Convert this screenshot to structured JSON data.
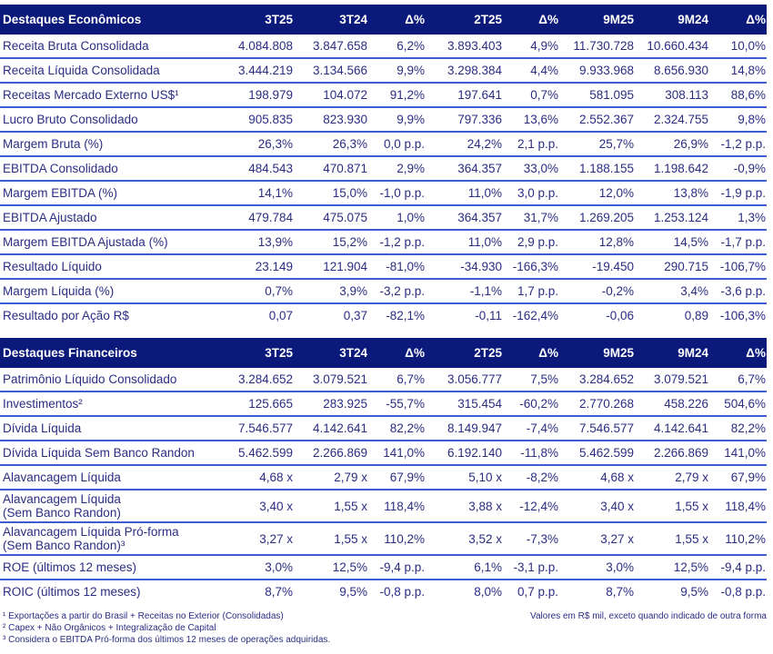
{
  "economic": {
    "header": [
      "Destaques Econômicos",
      "3T25",
      "3T24",
      "Δ%",
      "2T25",
      "Δ%",
      "9M25",
      "9M24",
      "Δ%"
    ],
    "rows": [
      [
        "Receita Bruta Consolidada",
        "4.084.808",
        "3.847.658",
        "6,2%",
        "3.893.403",
        "4,9%",
        "11.730.728",
        "10.660.434",
        "10,0%"
      ],
      [
        "Receita Líquida Consolidada",
        "3.444.219",
        "3.134.566",
        "9,9%",
        "3.298.384",
        "4,4%",
        "9.933.968",
        "8.656.930",
        "14,8%"
      ],
      [
        "Receitas Mercado Externo US$¹",
        "198.979",
        "104.072",
        "91,2%",
        "197.641",
        "0,7%",
        "581.095",
        "308.113",
        "88,6%"
      ],
      [
        "Lucro Bruto Consolidado",
        "905.835",
        "823.930",
        "9,9%",
        "797.336",
        "13,6%",
        "2.552.367",
        "2.324.755",
        "9,8%"
      ],
      [
        "Margem Bruta (%)",
        "26,3%",
        "26,3%",
        "0,0 p.p.",
        "24,2%",
        "2,1 p.p.",
        "25,7%",
        "26,9%",
        "-1,2 p.p."
      ],
      [
        "EBITDA Consolidado",
        "484.543",
        "470.871",
        "2,9%",
        "364.357",
        "33,0%",
        "1.188.155",
        "1.198.642",
        "-0,9%"
      ],
      [
        "Margem EBITDA (%)",
        "14,1%",
        "15,0%",
        "-1,0 p.p.",
        "11,0%",
        "3,0 p.p.",
        "12,0%",
        "13,8%",
        "-1,9 p.p."
      ],
      [
        "EBITDA Ajustado",
        "479.784",
        "475.075",
        "1,0%",
        "364.357",
        "31,7%",
        "1.269.205",
        "1.253.124",
        "1,3%"
      ],
      [
        "Margem EBITDA Ajustada (%)",
        "13,9%",
        "15,2%",
        "-1,2 p.p.",
        "11,0%",
        "2,9 p.p.",
        "12,8%",
        "14,5%",
        "-1,7 p.p."
      ],
      [
        "Resultado Líquido",
        "23.149",
        "121.904",
        "-81,0%",
        "-34.930",
        "-166,3%",
        "-19.450",
        "290.715",
        "-106,7%"
      ],
      [
        "Margem Líquida (%)",
        "0,7%",
        "3,9%",
        "-3,2 p.p.",
        "-1,1%",
        "1,7 p.p.",
        "-0,2%",
        "3,4%",
        "-3,6 p.p."
      ],
      [
        "Resultado por Ação R$",
        "0,07",
        "0,37",
        "-82,1%",
        "-0,11",
        "-162,4%",
        "-0,06",
        "0,89",
        "-106,3%"
      ]
    ]
  },
  "financial": {
    "header": [
      "Destaques Financeiros",
      "3T25",
      "3T24",
      "Δ%",
      "2T25",
      "Δ%",
      "9M25",
      "9M24",
      "Δ%"
    ],
    "rows": [
      [
        "Patrimônio Líquido Consolidado",
        "3.284.652",
        "3.079.521",
        "6,7%",
        "3.056.777",
        "7,5%",
        "3.284.652",
        "3.079.521",
        "6,7%"
      ],
      [
        "Investimentos²",
        "125.665",
        "283.925",
        "-55,7%",
        "315.454",
        "-60,2%",
        "2.770.268",
        "458.226",
        "504,6%"
      ],
      [
        "Dívida Líquida",
        "7.546.577",
        "4.142.641",
        "82,2%",
        "8.149.947",
        "-7,4%",
        "7.546.577",
        "4.142.641",
        "82,2%"
      ],
      [
        "Dívida Líquida Sem Banco Randon",
        "5.462.599",
        "2.266.869",
        "141,0%",
        "6.192.140",
        "-11,8%",
        "5.462.599",
        "2.266.869",
        "141,0%"
      ],
      [
        "Alavancagem Líquida",
        "4,68 x",
        "2,79 x",
        "67,9%",
        "5,10 x",
        "-8,2%",
        "4,68 x",
        "2,79 x",
        "67,9%"
      ],
      [
        "Alavancagem Líquida\n(Sem Banco Randon)",
        "3,40 x",
        "1,55 x",
        "118,4%",
        "3,88 x",
        "-12,4%",
        "3,40 x",
        "1,55 x",
        "118,4%"
      ],
      [
        "Alavancagem Líquida Pró-forma\n(Sem Banco Randon)³",
        "3,27 x",
        "1,55 x",
        "110,2%",
        "3,52 x",
        "-7,3%",
        "3,27 x",
        "1,55 x",
        "110,2%"
      ],
      [
        "ROE (últimos 12 meses)",
        "3,0%",
        "12,5%",
        "-9,4 p.p.",
        "6,1%",
        "-3,1 p.p.",
        "3,0%",
        "12,5%",
        "-9,4 p.p."
      ],
      [
        "ROIC (últimos 12 meses)",
        "8,7%",
        "9,5%",
        "-0,8 p.p.",
        "8,0%",
        "0,7 p.p.",
        "8,7%",
        "9,5%",
        "-0,8 p.p."
      ]
    ]
  },
  "footnotes": [
    "¹ Exportações a partir do Brasil + Receitas no Exterior (Consolidadas)",
    "² Capex + Não Orgânicos + Integralização de Capital",
    "³ Considera o EBITDA Pró-forma dos últimos 12 meses de operações adquiridas."
  ],
  "units_note": "Valores em R$ mil, exceto quando indicado de outra forma",
  "colors": {
    "header_bg": "#0b1a7a",
    "text": "#2b2d82",
    "row_divider": "#3d5ccf"
  }
}
